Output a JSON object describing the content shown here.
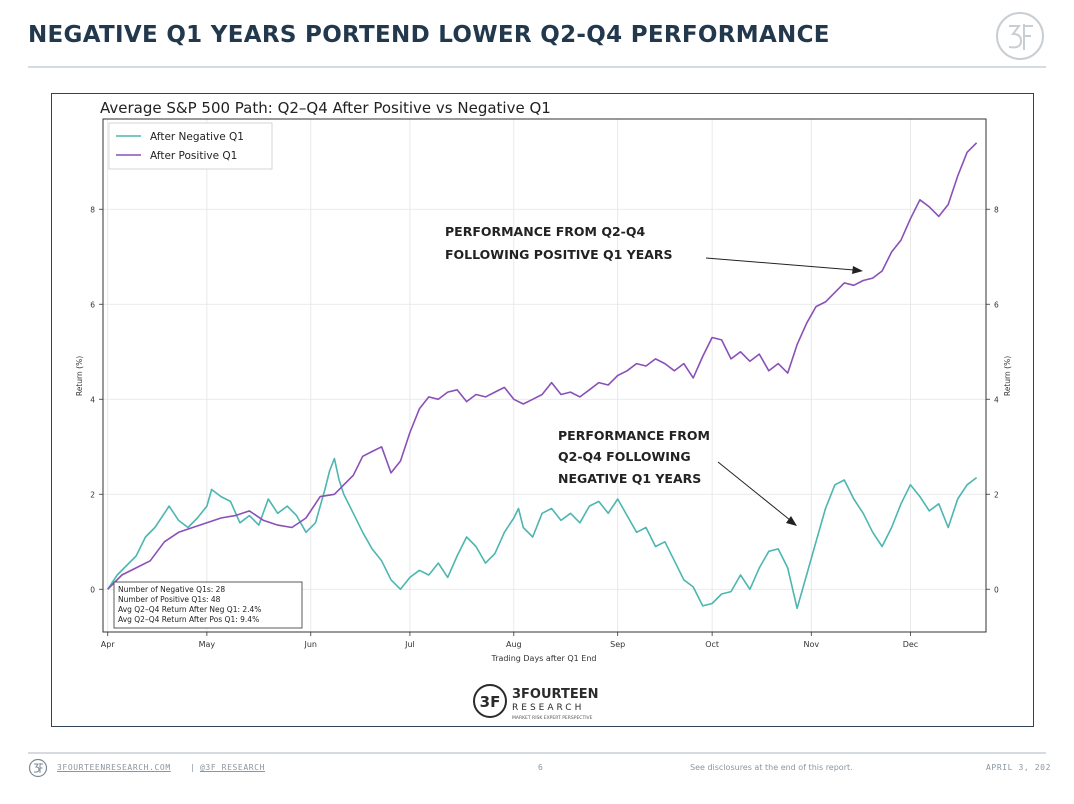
{
  "page": {
    "title": "NEGATIVE Q1 YEARS PORTEND LOWER Q2-Q4 PERFORMANCE"
  },
  "footer": {
    "website": "3FOURTEENRESEARCH.COM",
    "separator": "|",
    "handle": "@3F_RESEARCH",
    "page_number": "6",
    "disclosure": "See disclosures at the end of this report.",
    "date": "APRIL 3, 202"
  },
  "brand": {
    "name": "3FOURTEEN",
    "sub": "RESEARCH",
    "tagline": "MARKET RISK  EXPERT PERSPECTIVE",
    "mark": "3F"
  },
  "colors": {
    "negative": "#4db6b0",
    "positive": "#8a50b8",
    "title": "#22384d",
    "frame": "#2f4557"
  },
  "chart_data": {
    "type": "line",
    "title": "Average S&P 500 Path: Q2–Q4 After Positive vs Negative Q1",
    "xlabel": "Trading Days after Q1 End",
    "ylabel": "Return (%)",
    "ylabel_right": "Return (%)",
    "x_month_ticks": [
      {
        "label": "Apr",
        "day": 0
      },
      {
        "label": "May",
        "day": 21
      },
      {
        "label": "Jun",
        "day": 43
      },
      {
        "label": "Jul",
        "day": 64
      },
      {
        "label": "Aug",
        "day": 86
      },
      {
        "label": "Sep",
        "day": 108
      },
      {
        "label": "Oct",
        "day": 128
      },
      {
        "label": "Nov",
        "day": 149
      },
      {
        "label": "Dec",
        "day": 170
      }
    ],
    "xlim": [
      -1,
      186
    ],
    "ylim": [
      -0.9,
      9.9
    ],
    "y_ticks": [
      0,
      2,
      4,
      6,
      8
    ],
    "grid": true,
    "legend_position": "top-left",
    "series": [
      {
        "name": "After Negative Q1",
        "color": "#4db6b0",
        "points": [
          [
            0,
            0.0
          ],
          [
            2,
            0.3
          ],
          [
            4,
            0.5
          ],
          [
            6,
            0.7
          ],
          [
            8,
            1.1
          ],
          [
            10,
            1.3
          ],
          [
            12,
            1.6
          ],
          [
            13,
            1.75
          ],
          [
            15,
            1.45
          ],
          [
            17,
            1.3
          ],
          [
            19,
            1.5
          ],
          [
            21,
            1.75
          ],
          [
            22,
            2.1
          ],
          [
            24,
            1.95
          ],
          [
            26,
            1.85
          ],
          [
            28,
            1.4
          ],
          [
            30,
            1.55
          ],
          [
            32,
            1.35
          ],
          [
            34,
            1.9
          ],
          [
            36,
            1.6
          ],
          [
            38,
            1.75
          ],
          [
            40,
            1.55
          ],
          [
            42,
            1.2
          ],
          [
            44,
            1.4
          ],
          [
            46,
            2.1
          ],
          [
            47,
            2.5
          ],
          [
            48,
            2.75
          ],
          [
            49,
            2.3
          ],
          [
            50,
            2.0
          ],
          [
            52,
            1.6
          ],
          [
            54,
            1.2
          ],
          [
            56,
            0.85
          ],
          [
            58,
            0.6
          ],
          [
            60,
            0.2
          ],
          [
            62,
            0.0
          ],
          [
            64,
            0.25
          ],
          [
            66,
            0.4
          ],
          [
            68,
            0.3
          ],
          [
            70,
            0.55
          ],
          [
            72,
            0.25
          ],
          [
            74,
            0.7
          ],
          [
            76,
            1.1
          ],
          [
            78,
            0.9
          ],
          [
            80,
            0.55
          ],
          [
            82,
            0.75
          ],
          [
            84,
            1.2
          ],
          [
            86,
            1.5
          ],
          [
            87,
            1.7
          ],
          [
            88,
            1.3
          ],
          [
            90,
            1.1
          ],
          [
            92,
            1.6
          ],
          [
            94,
            1.7
          ],
          [
            96,
            1.45
          ],
          [
            98,
            1.6
          ],
          [
            100,
            1.4
          ],
          [
            102,
            1.75
          ],
          [
            104,
            1.85
          ],
          [
            106,
            1.6
          ],
          [
            108,
            1.9
          ],
          [
            110,
            1.55
          ],
          [
            112,
            1.2
          ],
          [
            114,
            1.3
          ],
          [
            116,
            0.9
          ],
          [
            118,
            1.0
          ],
          [
            120,
            0.6
          ],
          [
            122,
            0.2
          ],
          [
            124,
            0.05
          ],
          [
            126,
            -0.35
          ],
          [
            128,
            -0.3
          ],
          [
            130,
            -0.1
          ],
          [
            132,
            -0.05
          ],
          [
            134,
            0.3
          ],
          [
            136,
            0.0
          ],
          [
            138,
            0.45
          ],
          [
            140,
            0.8
          ],
          [
            142,
            0.85
          ],
          [
            144,
            0.45
          ],
          [
            146,
            -0.4
          ],
          [
            148,
            0.3
          ],
          [
            150,
            1.0
          ],
          [
            152,
            1.7
          ],
          [
            154,
            2.2
          ],
          [
            156,
            2.3
          ],
          [
            158,
            1.9
          ],
          [
            160,
            1.6
          ],
          [
            162,
            1.2
          ],
          [
            164,
            0.9
          ],
          [
            166,
            1.3
          ],
          [
            168,
            1.8
          ],
          [
            170,
            2.2
          ],
          [
            172,
            1.95
          ],
          [
            174,
            1.65
          ],
          [
            176,
            1.8
          ],
          [
            178,
            1.3
          ],
          [
            180,
            1.9
          ],
          [
            182,
            2.2
          ],
          [
            184,
            2.35
          ]
        ]
      },
      {
        "name": "After Positive Q1",
        "color": "#8a50b8",
        "points": [
          [
            0,
            0.0
          ],
          [
            3,
            0.3
          ],
          [
            6,
            0.45
          ],
          [
            9,
            0.6
          ],
          [
            12,
            1.0
          ],
          [
            15,
            1.2
          ],
          [
            18,
            1.3
          ],
          [
            21,
            1.4
          ],
          [
            24,
            1.5
          ],
          [
            27,
            1.55
          ],
          [
            30,
            1.65
          ],
          [
            33,
            1.45
          ],
          [
            36,
            1.35
          ],
          [
            39,
            1.3
          ],
          [
            42,
            1.5
          ],
          [
            45,
            1.95
          ],
          [
            48,
            2.0
          ],
          [
            50,
            2.2
          ],
          [
            52,
            2.4
          ],
          [
            54,
            2.8
          ],
          [
            56,
            2.9
          ],
          [
            58,
            3.0
          ],
          [
            60,
            2.45
          ],
          [
            62,
            2.7
          ],
          [
            64,
            3.3
          ],
          [
            66,
            3.8
          ],
          [
            68,
            4.05
          ],
          [
            70,
            4.0
          ],
          [
            72,
            4.15
          ],
          [
            74,
            4.2
          ],
          [
            76,
            3.95
          ],
          [
            78,
            4.1
          ],
          [
            80,
            4.05
          ],
          [
            82,
            4.15
          ],
          [
            84,
            4.25
          ],
          [
            86,
            4.0
          ],
          [
            88,
            3.9
          ],
          [
            90,
            4.0
          ],
          [
            92,
            4.1
          ],
          [
            94,
            4.35
          ],
          [
            96,
            4.1
          ],
          [
            98,
            4.15
          ],
          [
            100,
            4.05
          ],
          [
            102,
            4.2
          ],
          [
            104,
            4.35
          ],
          [
            106,
            4.3
          ],
          [
            108,
            4.5
          ],
          [
            110,
            4.6
          ],
          [
            112,
            4.75
          ],
          [
            114,
            4.7
          ],
          [
            116,
            4.85
          ],
          [
            118,
            4.75
          ],
          [
            120,
            4.6
          ],
          [
            122,
            4.75
          ],
          [
            124,
            4.45
          ],
          [
            126,
            4.9
          ],
          [
            128,
            5.3
          ],
          [
            130,
            5.25
          ],
          [
            132,
            4.85
          ],
          [
            134,
            5.0
          ],
          [
            136,
            4.8
          ],
          [
            138,
            4.95
          ],
          [
            140,
            4.6
          ],
          [
            142,
            4.75
          ],
          [
            144,
            4.55
          ],
          [
            146,
            5.15
          ],
          [
            148,
            5.6
          ],
          [
            150,
            5.95
          ],
          [
            152,
            6.05
          ],
          [
            154,
            6.25
          ],
          [
            156,
            6.45
          ],
          [
            158,
            6.4
          ],
          [
            160,
            6.5
          ],
          [
            162,
            6.55
          ],
          [
            164,
            6.7
          ],
          [
            166,
            7.1
          ],
          [
            168,
            7.35
          ],
          [
            170,
            7.8
          ],
          [
            172,
            8.2
          ],
          [
            174,
            8.05
          ],
          [
            176,
            7.85
          ],
          [
            178,
            8.1
          ],
          [
            180,
            8.7
          ],
          [
            182,
            9.2
          ],
          [
            184,
            9.4
          ]
        ]
      }
    ],
    "stats_box": [
      "Number of Negative Q1s: 28",
      "Number of Positive Q1s: 48",
      "Avg Q2–Q4 Return After Neg Q1: 2.4%",
      "Avg Q2–Q4 Return After Pos Q1: 9.4%"
    ],
    "annotations": [
      {
        "lines": [
          "PERFORMANCE FROM Q2-Q4",
          "FOLLOWING POSITIVE Q1 YEARS"
        ],
        "arrow_to": [
          161,
          6.8
        ]
      },
      {
        "lines": [
          "PERFORMANCE FROM",
          "Q2-Q4  FOLLOWING",
          "NEGATIVE Q1 YEARS"
        ],
        "arrow_to": [
          150,
          1.4
        ]
      }
    ]
  }
}
